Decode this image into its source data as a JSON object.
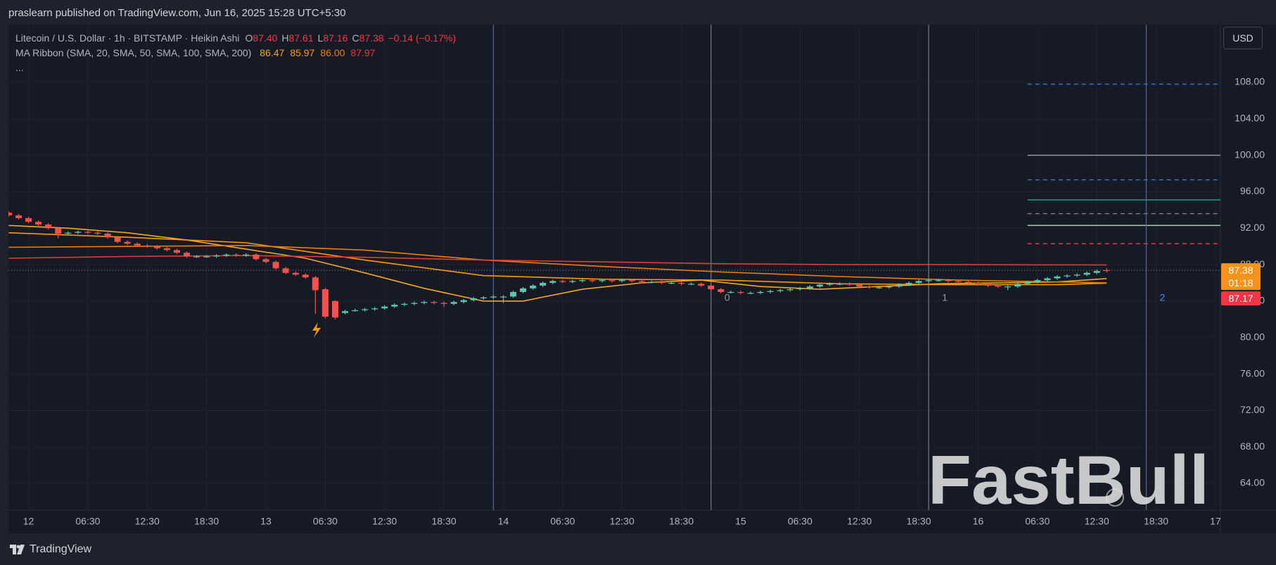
{
  "header": "praslearn published on TradingView.com, Jun 16, 2025 15:28 UTC+5:30",
  "footer": "TradingView",
  "currency": "USD",
  "watermark": "FastBull",
  "chart_data": {
    "type": "candlestick",
    "legend": {
      "symbol": "Litecoin / U.S. Dollar · 1h · BITSTAMP · Heikin Ashi",
      "o_key": "O",
      "o": "87.40",
      "h_key": "H",
      "h": "87.61",
      "l_key": "L",
      "l": "87.16",
      "c_key": "C",
      "c": "87.38",
      "change": "−0.14 (−0.17%)",
      "more": "..."
    },
    "indicator": "MA Ribbon (SMA, 20, SMA, 50, SMA, 100, SMA, 200)",
    "up_color": "#5bc8b0",
    "down_color": "#ef5350",
    "x": [
      -2,
      -1,
      0,
      1,
      2,
      3,
      4,
      5,
      6,
      7,
      8,
      9,
      10,
      11,
      12,
      13,
      14,
      15,
      16,
      17,
      18,
      19,
      20,
      21,
      22,
      23,
      24,
      25,
      26,
      27,
      28,
      29,
      30,
      31,
      32,
      33,
      34,
      35,
      36,
      37,
      38,
      39,
      40,
      41,
      42,
      43,
      44,
      45,
      46,
      47,
      48,
      49,
      50,
      51,
      52,
      53,
      54,
      55,
      56,
      57,
      58,
      59,
      60,
      61,
      62,
      63,
      64,
      65,
      66,
      67,
      68,
      69,
      70,
      71,
      72,
      73,
      74,
      75,
      76,
      77,
      78,
      79,
      80,
      81,
      82,
      83,
      84,
      85,
      86,
      87,
      88,
      89,
      90,
      91,
      92,
      93,
      94,
      95,
      96,
      97,
      98,
      99,
      100,
      101,
      102,
      103,
      104,
      105,
      106,
      107,
      108,
      109
    ],
    "ohlc": [
      [
        93.7,
        93.85,
        93.25,
        93.4
      ],
      [
        93.4,
        93.55,
        92.95,
        93.1
      ],
      [
        93.1,
        93.25,
        92.55,
        92.7
      ],
      [
        92.7,
        92.85,
        92.25,
        92.4
      ],
      [
        92.4,
        92.55,
        91.85,
        92.0
      ],
      [
        92.0,
        92.15,
        90.9,
        91.4
      ],
      [
        91.4,
        91.65,
        91.25,
        91.5
      ],
      [
        91.5,
        91.75,
        91.35,
        91.6
      ],
      [
        91.6,
        91.75,
        91.35,
        91.5
      ],
      [
        91.5,
        91.65,
        91.25,
        91.4
      ],
      [
        91.4,
        91.55,
        90.85,
        91.0
      ],
      [
        91.0,
        91.15,
        90.35,
        90.5
      ],
      [
        90.5,
        90.65,
        90.15,
        90.3
      ],
      [
        90.3,
        90.45,
        89.95,
        90.1
      ],
      [
        90.1,
        90.25,
        89.85,
        90.0
      ],
      [
        90.0,
        90.15,
        89.65,
        89.8
      ],
      [
        89.8,
        89.95,
        89.45,
        89.6
      ],
      [
        89.6,
        89.75,
        89.15,
        89.3
      ],
      [
        89.3,
        89.45,
        88.75,
        88.9
      ],
      [
        88.9,
        89.05,
        88.75,
        88.9
      ],
      [
        88.9,
        89.05,
        88.75,
        88.9
      ],
      [
        88.9,
        89.15,
        88.75,
        89.0
      ],
      [
        89.0,
        89.25,
        88.85,
        89.1
      ],
      [
        89.1,
        89.25,
        88.85,
        89.0
      ],
      [
        89.0,
        89.25,
        88.85,
        89.1
      ],
      [
        89.1,
        89.25,
        88.45,
        88.6
      ],
      [
        88.6,
        88.75,
        88.15,
        88.3
      ],
      [
        88.3,
        88.45,
        87.45,
        87.6
      ],
      [
        87.6,
        87.75,
        86.95,
        87.1
      ],
      [
        87.1,
        87.25,
        86.75,
        86.9
      ],
      [
        86.9,
        87.05,
        86.45,
        86.6
      ],
      [
        86.6,
        86.75,
        82.6,
        85.2
      ],
      [
        85.3,
        85.45,
        82.1,
        82.3
      ],
      [
        84.0,
        84.1,
        82.0,
        82.2
      ],
      [
        82.7,
        83.05,
        82.55,
        82.9
      ],
      [
        82.9,
        83.15,
        82.85,
        83.0
      ],
      [
        83.0,
        83.25,
        82.85,
        83.1
      ],
      [
        83.1,
        83.35,
        82.95,
        83.2
      ],
      [
        83.2,
        83.55,
        83.05,
        83.4
      ],
      [
        83.4,
        83.75,
        83.25,
        83.6
      ],
      [
        83.6,
        83.85,
        83.45,
        83.7
      ],
      [
        83.7,
        83.95,
        83.55,
        83.8
      ],
      [
        83.8,
        84.05,
        83.65,
        83.9
      ],
      [
        83.9,
        84.05,
        83.65,
        83.8
      ],
      [
        83.8,
        83.95,
        83.35,
        83.7
      ],
      [
        83.7,
        84.05,
        83.55,
        83.9
      ],
      [
        83.9,
        84.25,
        83.75,
        84.1
      ],
      [
        84.1,
        84.45,
        83.95,
        84.3
      ],
      [
        84.3,
        84.55,
        84.15,
        84.4
      ],
      [
        84.4,
        84.65,
        84.25,
        84.5
      ],
      [
        84.5,
        84.65,
        83.8,
        84.5
      ],
      [
        84.5,
        85.15,
        84.35,
        85.0
      ],
      [
        85.0,
        85.55,
        84.85,
        85.4
      ],
      [
        85.4,
        85.85,
        85.25,
        85.7
      ],
      [
        85.7,
        86.15,
        85.55,
        86.0
      ],
      [
        86.0,
        86.35,
        85.85,
        86.2
      ],
      [
        86.2,
        86.35,
        85.95,
        86.1
      ],
      [
        86.1,
        86.35,
        85.95,
        86.2
      ],
      [
        86.2,
        86.45,
        86.05,
        86.3
      ],
      [
        86.3,
        86.45,
        86.05,
        86.2
      ],
      [
        86.2,
        86.45,
        86.05,
        86.3
      ],
      [
        86.3,
        86.45,
        86.05,
        86.2
      ],
      [
        86.2,
        86.45,
        86.05,
        86.3
      ],
      [
        86.3,
        86.45,
        86.05,
        86.2
      ],
      [
        86.2,
        86.35,
        85.95,
        86.1
      ],
      [
        86.1,
        86.25,
        85.95,
        86.1
      ],
      [
        86.1,
        86.25,
        85.85,
        86.0
      ],
      [
        86.0,
        86.15,
        85.85,
        86.0
      ],
      [
        86.0,
        86.15,
        85.75,
        85.9
      ],
      [
        85.9,
        86.05,
        85.75,
        85.9
      ],
      [
        85.9,
        86.05,
        85.55,
        85.7
      ],
      [
        85.7,
        85.85,
        85.15,
        85.3
      ],
      [
        85.3,
        85.45,
        84.85,
        85.0
      ],
      [
        85.0,
        85.15,
        84.85,
        85.0
      ],
      [
        85.0,
        85.15,
        84.75,
        84.9
      ],
      [
        84.9,
        85.05,
        84.75,
        84.9
      ],
      [
        84.9,
        85.15,
        84.75,
        85.0
      ],
      [
        85.0,
        85.25,
        84.85,
        85.1
      ],
      [
        85.1,
        85.35,
        84.95,
        85.2
      ],
      [
        85.2,
        85.45,
        85.05,
        85.3
      ],
      [
        85.3,
        85.55,
        85.15,
        85.4
      ],
      [
        85.4,
        85.75,
        85.25,
        85.6
      ],
      [
        85.6,
        85.95,
        85.45,
        85.8
      ],
      [
        85.8,
        86.05,
        85.65,
        85.9
      ],
      [
        85.9,
        86.05,
        85.75,
        85.9
      ],
      [
        85.9,
        86.05,
        85.65,
        85.8
      ],
      [
        85.8,
        85.95,
        85.45,
        85.6
      ],
      [
        85.6,
        85.75,
        85.35,
        85.5
      ],
      [
        85.5,
        85.65,
        85.35,
        85.5
      ],
      [
        85.5,
        85.75,
        85.35,
        85.6
      ],
      [
        85.6,
        85.95,
        85.45,
        85.8
      ],
      [
        85.8,
        86.15,
        85.65,
        86.0
      ],
      [
        86.0,
        86.35,
        85.85,
        86.2
      ],
      [
        86.2,
        86.45,
        86.05,
        86.3
      ],
      [
        86.3,
        86.45,
        86.15,
        86.3
      ],
      [
        86.3,
        86.45,
        86.05,
        86.2
      ],
      [
        86.2,
        86.35,
        85.95,
        86.1
      ],
      [
        86.1,
        86.25,
        85.85,
        86.0
      ],
      [
        86.0,
        86.15,
        85.75,
        85.9
      ],
      [
        85.9,
        86.05,
        85.55,
        85.7
      ],
      [
        85.7,
        85.85,
        85.45,
        85.6
      ],
      [
        85.6,
        85.75,
        85.2,
        85.6
      ],
      [
        85.6,
        86.05,
        85.45,
        85.9
      ],
      [
        85.9,
        86.25,
        85.75,
        86.1
      ],
      [
        86.1,
        86.45,
        85.95,
        86.3
      ],
      [
        86.3,
        86.65,
        86.15,
        86.5
      ],
      [
        86.5,
        86.85,
        86.35,
        86.7
      ],
      [
        86.7,
        86.95,
        86.55,
        86.8
      ],
      [
        86.8,
        87.05,
        86.65,
        86.9
      ],
      [
        86.9,
        87.25,
        86.75,
        87.1
      ],
      [
        87.1,
        87.45,
        86.95,
        87.3
      ],
      [
        87.4,
        87.61,
        87.16,
        87.38
      ]
    ],
    "series": [
      {
        "color": "#f5a623",
        "last_label": "86.47",
        "x": [
          -2,
          4,
          10,
          16,
          22,
          28,
          34,
          40,
          46,
          50,
          56,
          62,
          68,
          74,
          80,
          86,
          92,
          98,
          104,
          109
        ],
        "values": [
          92.3,
          92.0,
          91.5,
          90.7,
          89.7,
          88.7,
          87.1,
          85.4,
          84.0,
          84.0,
          85.3,
          86.0,
          86.3,
          85.6,
          85.3,
          85.6,
          85.9,
          86.0,
          86.1,
          86.47
        ]
      },
      {
        "color": "#ff9800",
        "last_label": "85.97",
        "x": [
          -2,
          10,
          22,
          34,
          46,
          58,
          70,
          82,
          94,
          104,
          109
        ],
        "values": [
          91.5,
          91.0,
          90.4,
          88.5,
          86.8,
          86.4,
          86.3,
          85.9,
          85.8,
          85.8,
          85.97
        ]
      },
      {
        "color": "#f57c00",
        "last_label": "86.00",
        "x": [
          -2,
          10,
          22,
          34,
          46,
          58,
          70,
          82,
          94,
          104,
          109
        ],
        "values": [
          89.9,
          90.0,
          90.1,
          89.6,
          88.5,
          87.8,
          87.2,
          86.7,
          86.3,
          86.1,
          86.0
        ]
      },
      {
        "color": "#e53935",
        "last_label": "87.97",
        "x": [
          -2,
          10,
          22,
          34,
          46,
          58,
          70,
          82,
          94,
          104,
          109
        ],
        "values": [
          88.7,
          88.9,
          89.0,
          88.8,
          88.5,
          88.3,
          88.1,
          88.0,
          88.0,
          87.98,
          87.97
        ]
      }
    ],
    "levels_from": 101,
    "levels": [
      {
        "value": 107.8,
        "color": "#3d6bd6",
        "dashed": true
      },
      {
        "value": 100.0,
        "color": "#9598a1",
        "dashed": false
      },
      {
        "value": 97.3,
        "color": "#3d6bd6",
        "dashed": true
      },
      {
        "value": 95.1,
        "color": "#1a9e8a",
        "dashed": false
      },
      {
        "value": 93.6,
        "color": "#787b86",
        "dashed": true
      },
      {
        "value": 92.3,
        "color": "#a5d6a7",
        "dashed": false
      },
      {
        "value": 90.3,
        "color": "#f23645",
        "dashed": true
      }
    ],
    "vlines": [
      {
        "x": 47,
        "color": "#3d6bd6"
      },
      {
        "x": 69,
        "color": "#787b86",
        "label": 0
      },
      {
        "x": 91,
        "color": "#787b86",
        "label": 1
      },
      {
        "x": 113,
        "color": "#3d6bd6",
        "label": 2
      }
    ],
    "price_tags": [
      {
        "value": 87.38,
        "color": "#f7931a"
      },
      {
        "value": 87.17,
        "color": "#f23645"
      }
    ],
    "countdown": "01:18",
    "xlim": [
      -2.03,
      120.5
    ],
    "ylim": [
      61.07,
      114.33
    ],
    "xticks": [
      {
        "value": 0,
        "label": "12"
      },
      {
        "value": 6,
        "label": "06:30"
      },
      {
        "value": 12,
        "label": "12:30"
      },
      {
        "value": 18,
        "label": "18:30"
      },
      {
        "value": 24,
        "label": "13"
      },
      {
        "value": 30,
        "label": "06:30"
      },
      {
        "value": 36,
        "label": "12:30"
      },
      {
        "value": 42,
        "label": "18:30"
      },
      {
        "value": 48,
        "label": "14"
      },
      {
        "value": 54,
        "label": "06:30"
      },
      {
        "value": 60,
        "label": "12:30"
      },
      {
        "value": 66,
        "label": "18:30"
      },
      {
        "value": 72,
        "label": "15"
      },
      {
        "value": 78,
        "label": "06:30"
      },
      {
        "value": 84,
        "label": "12:30"
      },
      {
        "value": 90,
        "label": "18:30"
      },
      {
        "value": 96,
        "label": "16"
      },
      {
        "value": 102,
        "label": "06:30"
      },
      {
        "value": 108,
        "label": "12:30"
      },
      {
        "value": 114,
        "label": "18:30"
      },
      {
        "value": 120,
        "label": "17"
      }
    ],
    "yticks": [
      {
        "value": 64,
        "label": "64.00"
      },
      {
        "value": 68,
        "label": "68.00"
      },
      {
        "value": 72,
        "label": "72.00"
      },
      {
        "value": 76,
        "label": "76.00"
      },
      {
        "value": 80,
        "label": "80.00"
      },
      {
        "value": 84,
        "label": "84.00"
      },
      {
        "value": 88,
        "label": "88.00"
      },
      {
        "value": 92,
        "label": "92.00"
      },
      {
        "value": 96,
        "label": "96.00"
      },
      {
        "value": 100,
        "label": "100.00"
      },
      {
        "value": 104,
        "label": "104.00"
      },
      {
        "value": 108,
        "label": "108.00"
      }
    ],
    "grid": true
  }
}
